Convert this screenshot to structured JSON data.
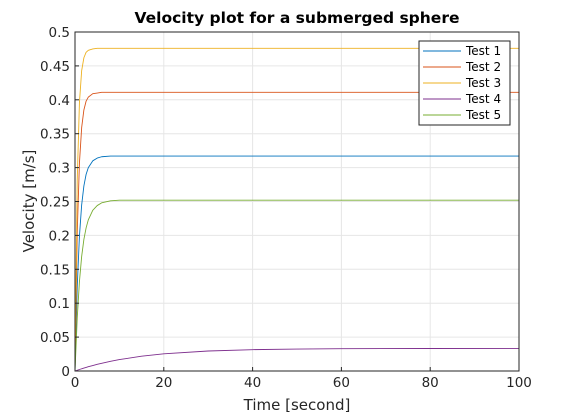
{
  "chart_data": {
    "type": "line",
    "title": "Velocity plot for a submerged sphere",
    "xlabel": "Time [second]",
    "ylabel": "Velocity [m/s]",
    "xlim": [
      0,
      100
    ],
    "ylim": [
      0,
      0.5
    ],
    "xticks": [
      "0",
      "20",
      "40",
      "60",
      "80",
      "100"
    ],
    "yticks": [
      "0",
      "0.05",
      "0.1",
      "0.15",
      "0.2",
      "0.25",
      "0.3",
      "0.35",
      "0.4",
      "0.45",
      "0.5"
    ],
    "grid": true,
    "legend_position": "top-right",
    "x": [
      0,
      0.5,
      1,
      1.5,
      2,
      2.5,
      3,
      4,
      5,
      6,
      8,
      10,
      15,
      20,
      30,
      40,
      50,
      60,
      80,
      100
    ],
    "series": [
      {
        "name": "Test 1",
        "color": "#0072BD",
        "values": [
          0,
          0.124,
          0.199,
          0.245,
          0.273,
          0.29,
          0.3,
          0.31,
          0.314,
          0.316,
          0.317,
          0.317,
          0.317,
          0.317,
          0.317,
          0.317,
          0.317,
          0.317,
          0.317,
          0.317
        ]
      },
      {
        "name": "Test 2",
        "color": "#D95319",
        "values": [
          0,
          0.204,
          0.307,
          0.359,
          0.385,
          0.398,
          0.404,
          0.409,
          0.41,
          0.411,
          0.411,
          0.411,
          0.411,
          0.411,
          0.411,
          0.411,
          0.411,
          0.411,
          0.411,
          0.411
        ]
      },
      {
        "name": "Test 3",
        "color": "#EDB120",
        "values": [
          0,
          0.281,
          0.396,
          0.443,
          0.462,
          0.47,
          0.473,
          0.475,
          0.476,
          0.476,
          0.476,
          0.476,
          0.476,
          0.476,
          0.476,
          0.476,
          0.476,
          0.476,
          0.476,
          0.476
        ]
      },
      {
        "name": "Test 4",
        "color": "#7E2F8E",
        "values": [
          0,
          0.0011,
          0.0022,
          0.0033,
          0.0043,
          0.0053,
          0.0063,
          0.0081,
          0.0098,
          0.0114,
          0.0143,
          0.0168,
          0.0218,
          0.0253,
          0.0295,
          0.0315,
          0.0324,
          0.0329,
          0.0332,
          0.0333
        ]
      },
      {
        "name": "Test 5",
        "color": "#77AC30",
        "values": [
          0,
          0.078,
          0.132,
          0.169,
          0.194,
          0.211,
          0.223,
          0.237,
          0.244,
          0.248,
          0.251,
          0.252,
          0.252,
          0.252,
          0.252,
          0.252,
          0.252,
          0.252,
          0.252,
          0.252
        ]
      }
    ]
  }
}
